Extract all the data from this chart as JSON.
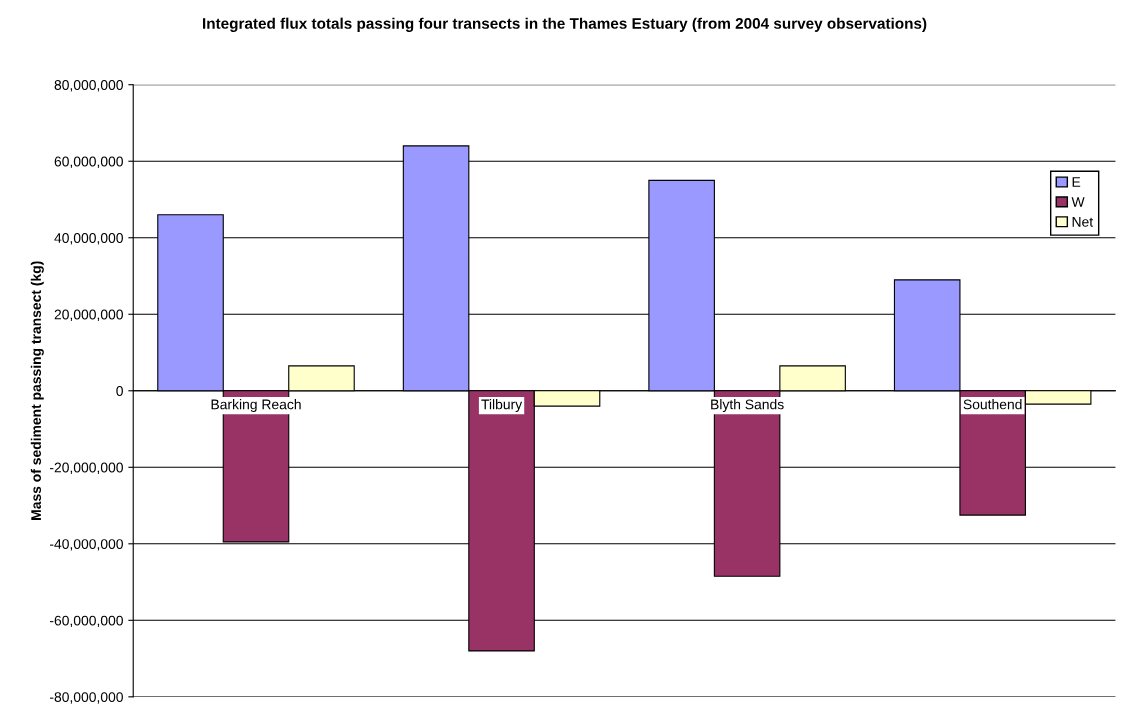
{
  "chart_data": {
    "type": "bar",
    "title": "Integrated flux totals passing four transects in the Thames Estuary (from 2004 survey observations)",
    "ylabel": "Mass of sediment passing transect (kg)",
    "categories": [
      "Barking Reach",
      "Tilbury",
      "Blyth Sands",
      "Southend"
    ],
    "series": [
      {
        "name": "E",
        "color": "#9999ff",
        "values": [
          46000000,
          64000000,
          55000000,
          29000000
        ]
      },
      {
        "name": "W",
        "color": "#993366",
        "values": [
          -39500000,
          -68000000,
          -48500000,
          -32500000
        ]
      },
      {
        "name": "Net",
        "color": "#ffffcc",
        "values": [
          6500000,
          -4000000,
          6500000,
          -3500000
        ]
      }
    ],
    "ylim": [
      -80000000,
      80000000
    ],
    "yticks": [
      {
        "value": -80000000,
        "label": "-80,000,000"
      },
      {
        "value": -60000000,
        "label": "-60,000,000"
      },
      {
        "value": -40000000,
        "label": "-40,000,000"
      },
      {
        "value": -20000000,
        "label": "-20,000,000"
      },
      {
        "value": 0,
        "label": "0"
      },
      {
        "value": 20000000,
        "label": "20,000,000"
      },
      {
        "value": 40000000,
        "label": "40,000,000"
      },
      {
        "value": 60000000,
        "label": "60,000,000"
      },
      {
        "value": 80000000,
        "label": "80,000,000"
      }
    ],
    "grid": "y",
    "legend": "top right"
  }
}
